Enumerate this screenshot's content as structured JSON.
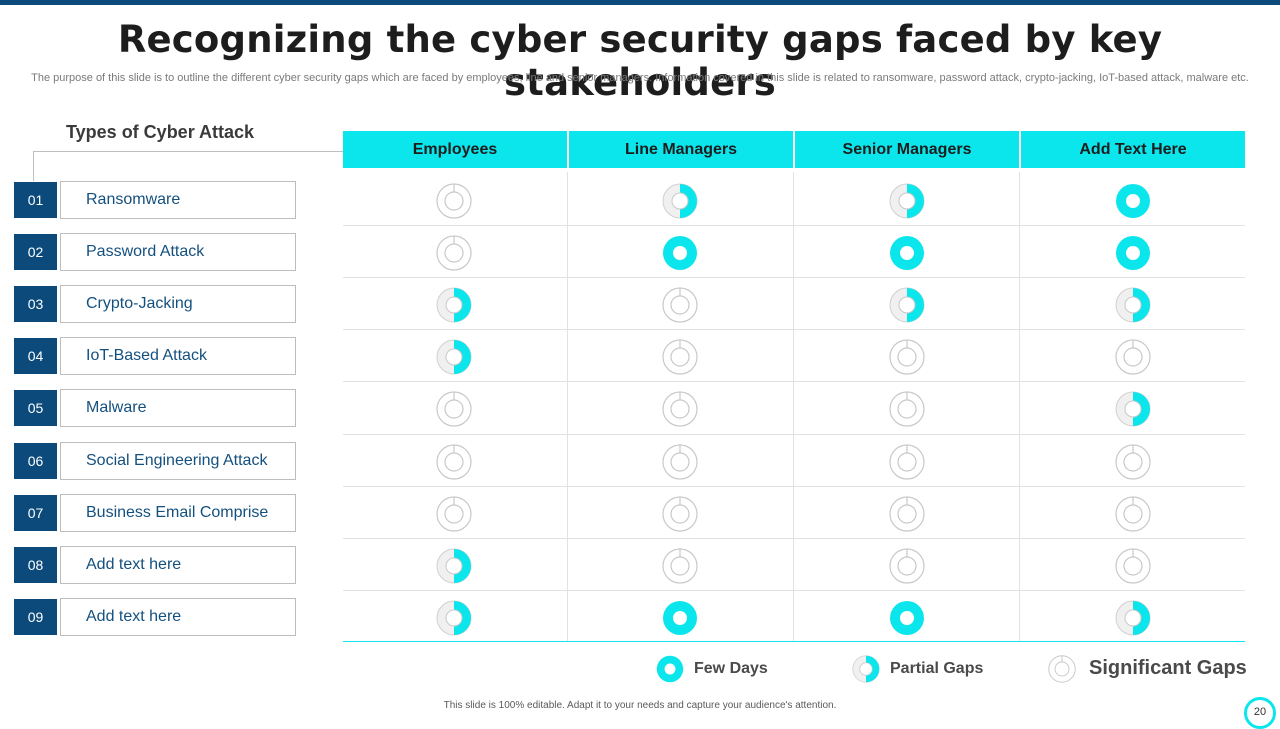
{
  "title": "Recognizing the cyber security gaps faced by key stakeholders",
  "subtitle": "The purpose of this slide is to outline the different cyber security gaps which are faced by employees, line and senior managers. Information covered in this slide is related to ransomware, password attack, crypto-jacking, IoT-based attack, malware etc.",
  "types_title": "Types of Cyber Attack",
  "columns": [
    "Employees",
    "Line Managers",
    "Senior Managers",
    "Add Text Here"
  ],
  "rows": [
    {
      "num": "01",
      "label": "Ransomware",
      "levels": [
        "significant",
        "partial",
        "partial",
        "few"
      ]
    },
    {
      "num": "02",
      "label": "Password Attack",
      "levels": [
        "significant",
        "few",
        "few",
        "few"
      ]
    },
    {
      "num": "03",
      "label": "Crypto-Jacking",
      "levels": [
        "partial",
        "significant",
        "partial",
        "partial"
      ]
    },
    {
      "num": "04",
      "label": "IoT-Based Attack",
      "levels": [
        "partial",
        "significant",
        "significant",
        "significant"
      ]
    },
    {
      "num": "05",
      "label": "Malware",
      "levels": [
        "significant",
        "significant",
        "significant",
        "partial"
      ]
    },
    {
      "num": "06",
      "label": "Social Engineering Attack",
      "levels": [
        "significant",
        "significant",
        "significant",
        "significant"
      ]
    },
    {
      "num": "07",
      "label": "Business Email Comprise",
      "levels": [
        "significant",
        "significant",
        "significant",
        "significant"
      ]
    },
    {
      "num": "08",
      "label": "Add text here",
      "levels": [
        "partial",
        "significant",
        "significant",
        "significant"
      ]
    },
    {
      "num": "09",
      "label": "Add text here",
      "levels": [
        "partial",
        "few",
        "few",
        "partial"
      ]
    }
  ],
  "legend": [
    {
      "level": "few",
      "label": "Few Days"
    },
    {
      "level": "partial",
      "label": "Partial Gaps"
    },
    {
      "level": "significant",
      "label": "Significant Gaps"
    }
  ],
  "footer": "This slide is 100% editable. Adapt it to your needs and capture your audience's attention.",
  "page_number": "20",
  "colors": {
    "accent": "#0ae6ec",
    "primary": "#0b4a7a",
    "ring": "#c8c8c8"
  }
}
